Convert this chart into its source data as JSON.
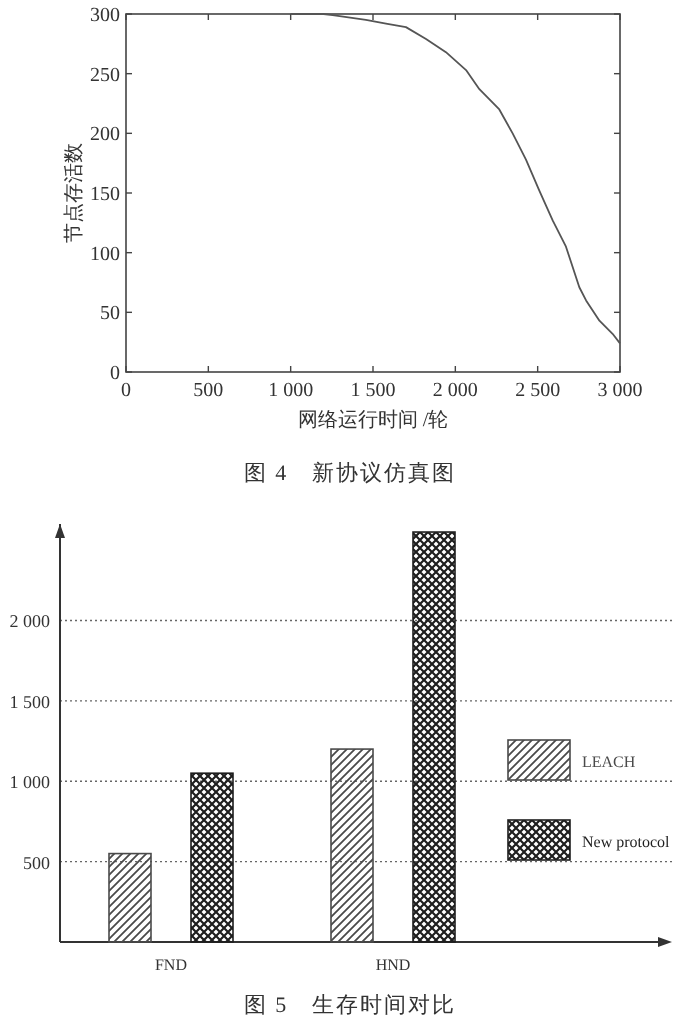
{
  "chart_data": [
    {
      "type": "line",
      "xlabel": "网络运行时间 /轮",
      "ylabel": "节点存活数",
      "annotations": [
        "图 4　新协议仿真图"
      ],
      "xlim": [
        0,
        3000
      ],
      "ylim": [
        0,
        300
      ],
      "xticks": [
        0,
        500,
        {
          "value": 1000,
          "label": "1 000"
        },
        {
          "value": 1500,
          "label": "1 500"
        },
        {
          "value": 2000,
          "label": "2 000"
        },
        {
          "value": 2500,
          "label": "2 500"
        },
        {
          "value": 3000,
          "label": "3 000"
        }
      ],
      "yticks": [
        0,
        50,
        100,
        150,
        200,
        250,
        300
      ],
      "marker": "none",
      "line_style": "solid",
      "series": [
        {
          "color": "#555555",
          "x": [
            1000,
            1200,
            1255,
            1457,
            1579,
            1700,
            1822,
            1943,
            2065,
            2146,
            2267,
            2348,
            2429,
            2510,
            2591,
            2672,
            2753,
            2794,
            2875,
            2955,
            3000
          ],
          "values": [
            300,
            300,
            299,
            295,
            292,
            289,
            279,
            268,
            253,
            237,
            220,
            200,
            178,
            152,
            127,
            105,
            71,
            60,
            43,
            32,
            24
          ]
        }
      ]
    },
    {
      "type": "bar",
      "annotations": [
        "图 5　生存时间对比"
      ],
      "categories": [
        "FND",
        "HND"
      ],
      "ylim": [
        0,
        2600
      ],
      "yticks": [
        {
          "value": 500,
          "label": "500"
        },
        {
          "value": 1000,
          "label": "1 000"
        },
        {
          "value": 1500,
          "label": "1 500"
        },
        {
          "value": 2000,
          "label": "2 000"
        }
      ],
      "grid": "y",
      "legend": "right",
      "series": [
        {
          "name": "LEACH",
          "color": "#4a4a4a",
          "values": [
            550,
            1200
          ]
        },
        {
          "name": "New protocol",
          "color": "#1e1e1e",
          "values": [
            1050,
            2550
          ]
        }
      ]
    }
  ]
}
